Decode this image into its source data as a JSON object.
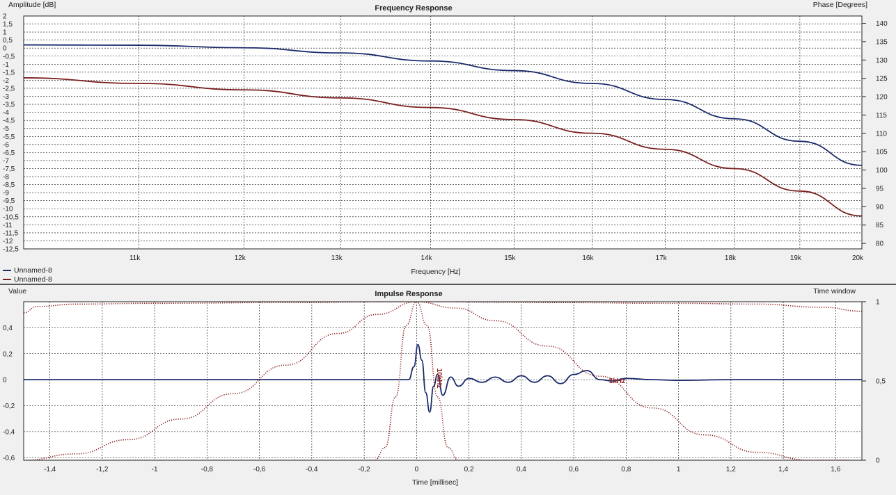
{
  "colors": {
    "series_blue": "#1b2a6b",
    "series_red": "#7a1f1f",
    "dotted_red": "#8b1a1a",
    "plot_bg": "#ffffff",
    "window_bg": "#f0f0f0"
  },
  "legend": [
    {
      "name": "Unnamed-8",
      "color": "#1b2a6b"
    },
    {
      "name": "Unnamed-8",
      "color": "#7a1f1f"
    }
  ],
  "chart_data": [
    {
      "type": "line",
      "title": "Frequency Response",
      "xlabel": "Frequency [Hz]",
      "ylabel": "Amplitude [dB]",
      "y2label": "Phase [Degrees]",
      "x_scale": "log",
      "xlim": [
        10000,
        20000
      ],
      "ylim": [
        -12.5,
        2
      ],
      "y2lim": [
        78.5,
        142
      ],
      "x_ticks": [
        {
          "value": 11000,
          "label": "11k"
        },
        {
          "value": 12000,
          "label": "12k"
        },
        {
          "value": 13000,
          "label": "13k"
        },
        {
          "value": 14000,
          "label": "14k"
        },
        {
          "value": 15000,
          "label": "15k"
        },
        {
          "value": 16000,
          "label": "16k"
        },
        {
          "value": 17000,
          "label": "17k"
        },
        {
          "value": 18000,
          "label": "18k"
        },
        {
          "value": 19000,
          "label": "19k"
        },
        {
          "value": 20000,
          "label": "20k"
        }
      ],
      "y_ticks": [
        {
          "value": 2,
          "label": "2"
        },
        {
          "value": 1.5,
          "label": "1,5"
        },
        {
          "value": 1,
          "label": "1"
        },
        {
          "value": 0.5,
          "label": "0,5"
        },
        {
          "value": 0,
          "label": "0"
        },
        {
          "value": -0.5,
          "label": "-0,5"
        },
        {
          "value": -1,
          "label": "-1"
        },
        {
          "value": -1.5,
          "label": "-1,5"
        },
        {
          "value": -2,
          "label": "-2"
        },
        {
          "value": -2.5,
          "label": "-2,5"
        },
        {
          "value": -3,
          "label": "-3"
        },
        {
          "value": -3.5,
          "label": "-3,5"
        },
        {
          "value": -4,
          "label": "-4"
        },
        {
          "value": -4.5,
          "label": "-4,5"
        },
        {
          "value": -5,
          "label": "-5"
        },
        {
          "value": -5.5,
          "label": "-5,5"
        },
        {
          "value": -6,
          "label": "-6"
        },
        {
          "value": -6.5,
          "label": "-6,5"
        },
        {
          "value": -7,
          "label": "-7"
        },
        {
          "value": -7.5,
          "label": "-7,5"
        },
        {
          "value": -8,
          "label": "-8"
        },
        {
          "value": -8.5,
          "label": "-8,5"
        },
        {
          "value": -9,
          "label": "-9"
        },
        {
          "value": -9.5,
          "label": "-9,5"
        },
        {
          "value": -10,
          "label": "-10"
        },
        {
          "value": -10.5,
          "label": "-10,5"
        },
        {
          "value": -11,
          "label": "-11"
        },
        {
          "value": -11.5,
          "label": "-11,5"
        },
        {
          "value": -12,
          "label": "-12"
        },
        {
          "value": -12.5,
          "label": "-12,5"
        }
      ],
      "y2_ticks": [
        {
          "value": 140,
          "label": "140"
        },
        {
          "value": 135,
          "label": "135"
        },
        {
          "value": 130,
          "label": "130"
        },
        {
          "value": 125,
          "label": "125"
        },
        {
          "value": 120,
          "label": "120"
        },
        {
          "value": 115,
          "label": "115"
        },
        {
          "value": 110,
          "label": "110"
        },
        {
          "value": 105,
          "label": "105"
        },
        {
          "value": 100,
          "label": "100"
        },
        {
          "value": 95,
          "label": "95"
        },
        {
          "value": 90,
          "label": "90"
        },
        {
          "value": 85,
          "label": "85"
        },
        {
          "value": 80,
          "label": "80"
        }
      ],
      "series": [
        {
          "color": "#1b2a6b",
          "x": [
            10000,
            11000,
            12000,
            13000,
            14000,
            15000,
            16000,
            17000,
            18000,
            19000,
            20000
          ],
          "y": [
            0.2,
            0.18,
            0.02,
            -0.3,
            -0.8,
            -1.4,
            -2.2,
            -3.2,
            -4.4,
            -5.8,
            -7.3
          ]
        },
        {
          "color": "#7a1f1f",
          "x": [
            10000,
            11000,
            12000,
            13000,
            14000,
            15000,
            16000,
            17000,
            18000,
            19000,
            20000
          ],
          "y": [
            -1.85,
            -2.2,
            -2.6,
            -3.1,
            -3.7,
            -4.45,
            -5.3,
            -6.3,
            -7.5,
            -8.9,
            -10.45
          ]
        }
      ]
    },
    {
      "type": "line",
      "title": "Impulse Response",
      "xlabel": "Time [millisec]",
      "ylabel": "Value",
      "y2label": "Time window",
      "xlim": [
        -1.5,
        1.7
      ],
      "ylim": [
        -0.62,
        0.6
      ],
      "y2lim": [
        0,
        1
      ],
      "x_ticks": [
        {
          "value": -1.4,
          "label": "-1,4"
        },
        {
          "value": -1.2,
          "label": "-1,2"
        },
        {
          "value": -1,
          "label": "-1"
        },
        {
          "value": -0.8,
          "label": "-0,8"
        },
        {
          "value": -0.6,
          "label": "-0,6"
        },
        {
          "value": -0.4,
          "label": "-0,4"
        },
        {
          "value": -0.2,
          "label": "-0,2"
        },
        {
          "value": 0,
          "label": "0"
        },
        {
          "value": 0.2,
          "label": "0,2"
        },
        {
          "value": 0.4,
          "label": "0,4"
        },
        {
          "value": 0.6,
          "label": "0,6"
        },
        {
          "value": 0.8,
          "label": "0,8"
        },
        {
          "value": 1,
          "label": "1"
        },
        {
          "value": 1.2,
          "label": "1,2"
        },
        {
          "value": 1.4,
          "label": "1,4"
        },
        {
          "value": 1.6,
          "label": "1,6"
        }
      ],
      "y_ticks": [
        {
          "value": 0.4,
          "label": "0,4"
        },
        {
          "value": 0.2,
          "label": "0,2"
        },
        {
          "value": 0,
          "label": "0"
        },
        {
          "value": -0.2,
          "label": "-0,2"
        },
        {
          "value": -0.4,
          "label": "-0,4"
        },
        {
          "value": -0.6,
          "label": "-0,6"
        }
      ],
      "y2_ticks": [
        {
          "value": 1,
          "label": "1"
        },
        {
          "value": 0.5,
          "label": "0,5"
        },
        {
          "value": 0,
          "label": "0"
        }
      ],
      "series": [
        {
          "color": "#1b2a6b",
          "x": [
            -1.5,
            -0.03,
            -0.01,
            0.005,
            0.02,
            0.035,
            0.05,
            0.065,
            0.08,
            0.1,
            0.13,
            0.16,
            0.2,
            0.25,
            0.3,
            0.35,
            0.4,
            0.45,
            0.5,
            0.55,
            0.6,
            0.65,
            0.7,
            0.75,
            0.8,
            0.9,
            1.0,
            1.2,
            1.4,
            1.7
          ],
          "y": [
            0,
            0,
            0.1,
            0.27,
            0.15,
            -0.1,
            -0.25,
            -0.05,
            0.04,
            -0.12,
            0.02,
            -0.05,
            0.01,
            -0.02,
            0.02,
            -0.02,
            0.03,
            -0.02,
            0.03,
            -0.03,
            0.04,
            0.07,
            0.0,
            -0.01,
            0.01,
            0.0,
            -0.005,
            0.0,
            0.0,
            0.0
          ]
        },
        {
          "color": "#8b1a1a",
          "style": "dotted",
          "axis": "y2",
          "x": [
            -1.5,
            -1.3,
            -1.1,
            -0.9,
            -0.7,
            -0.5,
            -0.3,
            -0.15,
            0,
            0.15,
            0.3,
            0.5,
            0.7,
            0.9,
            1.1,
            1.3,
            1.5,
            1.65
          ],
          "y": [
            0.0,
            0.04,
            0.13,
            0.26,
            0.42,
            0.6,
            0.8,
            0.92,
            1.0,
            0.96,
            0.88,
            0.72,
            0.53,
            0.33,
            0.16,
            0.05,
            0.0,
            0.0
          ]
        },
        {
          "color": "#8b1a1a",
          "style": "dotted",
          "axis": "y2",
          "x": [
            -1.5,
            -0.16,
            -0.12,
            -0.08,
            -0.04,
            0,
            0.04,
            0.08,
            0.12,
            0.16,
            1.7
          ],
          "y": [
            0,
            0.0,
            0.08,
            0.4,
            0.85,
            1.0,
            0.85,
            0.4,
            0.08,
            0.0,
            0
          ]
        },
        {
          "color": "#8b1a1a",
          "style": "dotted",
          "axis": "y2",
          "x": [
            -1.5,
            -1.45,
            -1.3,
            -1.0,
            -0.5,
            0,
            0.5,
            1.0,
            1.3,
            1.55,
            1.7
          ],
          "y": [
            0.93,
            0.97,
            0.985,
            0.99,
            0.995,
            1.0,
            0.995,
            0.99,
            0.985,
            0.965,
            0.94
          ]
        }
      ],
      "annotations": [
        {
          "text": "10kHz",
          "x": 0.1,
          "y": 0.0
        },
        {
          "text": "1kHz",
          "x": 0.74,
          "y": 0.0
        }
      ]
    }
  ]
}
